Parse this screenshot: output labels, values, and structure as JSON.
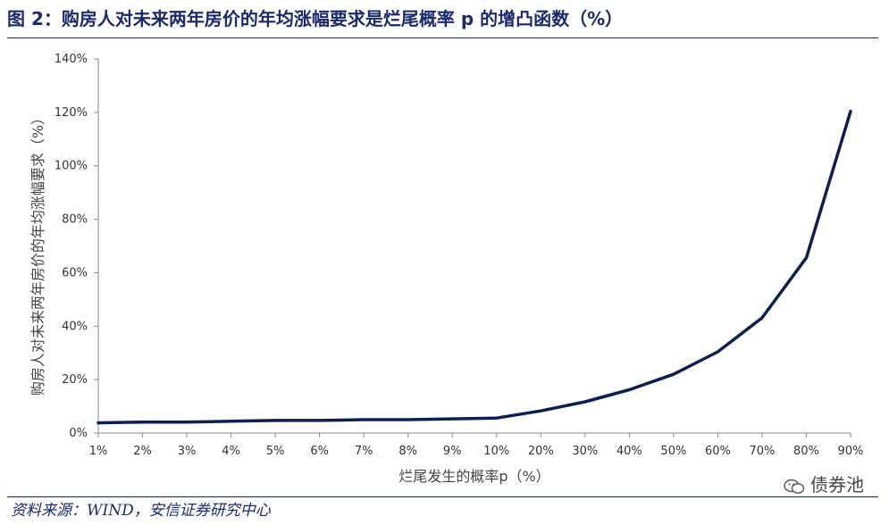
{
  "header": {
    "title": "图 2：购房人对未来两年房价的年均涨幅要求是烂尾概率 p 的增凸函数（%）"
  },
  "footer": {
    "source": "资料来源：WIND，安信证券研究中心",
    "watermark": "债券池",
    "watermark_icon": "wechat-icon"
  },
  "chart_data": {
    "type": "line",
    "title": "",
    "xlabel": "烂尾发生的概率p（%）",
    "ylabel": "购房人对未来两年房价的年均涨幅要求（%）",
    "categories": [
      "1%",
      "2%",
      "3%",
      "4%",
      "5%",
      "6%",
      "7%",
      "8%",
      "9%",
      "10%",
      "20%",
      "30%",
      "40%",
      "50%",
      "60%",
      "70%",
      "80%",
      "90%"
    ],
    "yticks": [
      "0%",
      "20%",
      "40%",
      "60%",
      "80%",
      "100%",
      "120%",
      "140%"
    ],
    "ylim": [
      0,
      140
    ],
    "grid": false,
    "legend": "none",
    "series": [
      {
        "values": [
          3.8,
          4.1,
          4.1,
          4.4,
          4.7,
          4.7,
          5.0,
          5.0,
          5.3,
          5.6,
          8.3,
          11.7,
          16.2,
          22.0,
          30.4,
          43.1,
          65.6,
          120.4
        ],
        "color": "#0d1f52"
      }
    ]
  }
}
